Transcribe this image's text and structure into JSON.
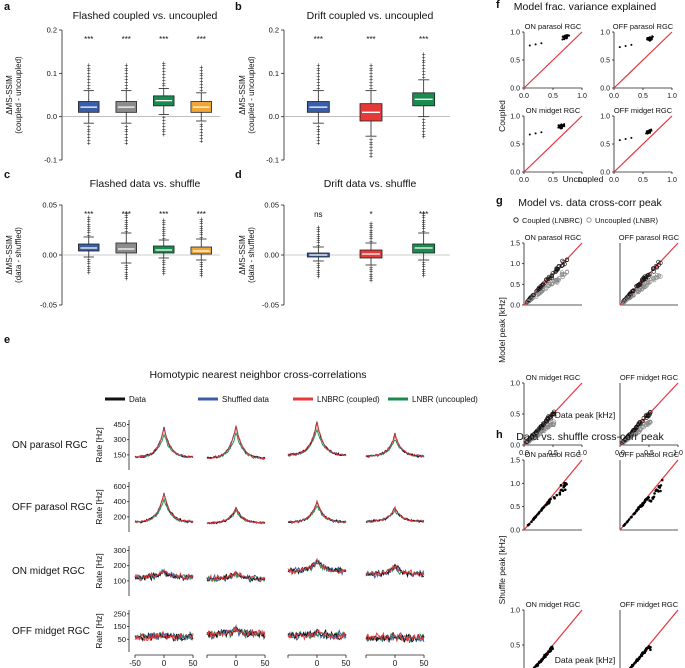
{
  "colors": {
    "blue": "#3a5da8",
    "gray": "#8c8c8c",
    "green": "#1a8a4f",
    "orange": "#f0a535",
    "red": "#e43a3a",
    "black": "#111111",
    "identity": "#e8333a"
  },
  "panel_letters": [
    "a",
    "b",
    "c",
    "d",
    "e",
    "f",
    "g",
    "h"
  ],
  "chart_data": [
    {
      "panel": "a",
      "type": "box",
      "title": "Flashed coupled vs. uncoupled",
      "ylabel_1": "ΔMS-SSIM",
      "ylabel_2": "(coupled - uncoupled)",
      "ylim": [
        -0.1,
        0.2
      ],
      "yticks": [
        "-0.1",
        "0.0",
        "0.1",
        "0.2"
      ],
      "boxes": [
        {
          "color": "blue",
          "q1": 0.01,
          "median": 0.022,
          "q3": 0.035,
          "lo": -0.015,
          "hi": 0.06,
          "sig": "***"
        },
        {
          "color": "gray",
          "q1": 0.01,
          "median": 0.022,
          "q3": 0.035,
          "lo": -0.015,
          "hi": 0.06,
          "sig": "***"
        },
        {
          "color": "green",
          "q1": 0.025,
          "median": 0.037,
          "q3": 0.048,
          "lo": 0.005,
          "hi": 0.065,
          "sig": "***"
        },
        {
          "color": "orange",
          "q1": 0.01,
          "median": 0.022,
          "q3": 0.035,
          "lo": -0.01,
          "hi": 0.055,
          "sig": "***"
        }
      ]
    },
    {
      "panel": "b",
      "type": "box",
      "title": "Drift coupled vs. uncoupled",
      "ylabel_1": "ΔMS-SSIM",
      "ylabel_2": "(coupled - uncoupled)",
      "ylim": [
        -0.1,
        0.2
      ],
      "yticks": [
        "-0.1",
        "0.0",
        "0.1",
        "0.2"
      ],
      "boxes": [
        {
          "color": "blue",
          "q1": 0.01,
          "median": 0.022,
          "q3": 0.035,
          "lo": -0.015,
          "hi": 0.06,
          "sig": "***"
        },
        {
          "color": "red",
          "q1": -0.01,
          "median": 0.01,
          "q3": 0.03,
          "lo": -0.045,
          "hi": 0.06,
          "sig": "***"
        },
        {
          "color": "green",
          "q1": 0.025,
          "median": 0.04,
          "q3": 0.055,
          "lo": 0.0,
          "hi": 0.085,
          "sig": "***"
        }
      ]
    },
    {
      "panel": "c",
      "type": "box",
      "title": "Flashed data vs. shuffle",
      "ylabel_1": "ΔMS-SSIM",
      "ylabel_2": "(data - shuffled)",
      "ylim": [
        -0.05,
        0.05
      ],
      "yticks": [
        "-0.05",
        "0.00",
        "0.05"
      ],
      "boxes": [
        {
          "color": "blue",
          "q1": 0.004,
          "median": 0.007,
          "q3": 0.011,
          "lo": -0.002,
          "hi": 0.018,
          "sig": "***"
        },
        {
          "color": "gray",
          "q1": 0.002,
          "median": 0.006,
          "q3": 0.012,
          "lo": -0.008,
          "hi": 0.022,
          "sig": "***"
        },
        {
          "color": "green",
          "q1": 0.002,
          "median": 0.005,
          "q3": 0.009,
          "lo": -0.003,
          "hi": 0.015,
          "sig": "***"
        },
        {
          "color": "orange",
          "q1": 0.001,
          "median": 0.004,
          "q3": 0.008,
          "lo": -0.005,
          "hi": 0.016,
          "sig": "***"
        }
      ]
    },
    {
      "panel": "d",
      "type": "box",
      "title": "Drift data vs. shuffle",
      "ylabel_1": "ΔMS-SSIM",
      "ylabel_2": "(data - shuffled)",
      "ylim": [
        -0.05,
        0.05
      ],
      "yticks": [
        "-0.05",
        "0.00",
        "0.05"
      ],
      "boxes": [
        {
          "color": "blue",
          "q1": -0.002,
          "median": 0.0,
          "q3": 0.002,
          "lo": -0.006,
          "hi": 0.008,
          "sig": "ns"
        },
        {
          "color": "red",
          "q1": -0.003,
          "median": 0.001,
          "q3": 0.005,
          "lo": -0.01,
          "hi": 0.012,
          "sig": "*"
        },
        {
          "color": "green",
          "q1": 0.002,
          "median": 0.007,
          "q3": 0.011,
          "lo": -0.005,
          "hi": 0.022,
          "sig": "***"
        }
      ]
    },
    {
      "panel": "e",
      "type": "line",
      "title": "Homotypic nearest neighbor cross-correlations",
      "legend": [
        {
          "label": "Data",
          "color": "black"
        },
        {
          "label": "Shuffled data",
          "color": "blue"
        },
        {
          "label": "LNBRC (coupled)",
          "color": "red"
        },
        {
          "label": "LNBR (uncoupled)",
          "color": "green"
        }
      ],
      "xlabel": "Time [ms]",
      "ylabel": "Rate [Hz]",
      "xticks": [
        "-50",
        "0",
        "50"
      ],
      "rows": [
        {
          "name": "ON parasol RGC",
          "yticks": [
            "150",
            "300",
            "450"
          ],
          "ymax": 480,
          "peaks": [
            400,
            420,
            460,
            340
          ],
          "base": [
            120,
            110,
            140,
            130
          ]
        },
        {
          "name": "OFF parasol RGC",
          "yticks": [
            "200",
            "400",
            "600"
          ],
          "ymax": 620,
          "peaks": [
            480,
            300,
            380,
            300
          ],
          "base": [
            120,
            110,
            120,
            130
          ]
        },
        {
          "name": "ON midget RGC",
          "yticks": [
            "100",
            "200",
            "300"
          ],
          "ymax": 320,
          "peaks": [
            160,
            150,
            230,
            190
          ],
          "base": [
            120,
            110,
            160,
            140
          ]
        },
        {
          "name": "OFF midget RGC",
          "yticks": [
            "50",
            "150",
            "250"
          ],
          "ymax": 280,
          "peaks": [
            110,
            150,
            130,
            100
          ],
          "base": [
            100,
            120,
            110,
            95
          ]
        }
      ]
    },
    {
      "panel": "f",
      "type": "scatter",
      "title": "Model frac. variance explained",
      "xlabel": "Uncoupled",
      "ylabel": "Coupled",
      "xlim": [
        0,
        1
      ],
      "ylim": [
        0,
        1
      ],
      "xticks": [
        "0.0",
        "0.5",
        "1.0"
      ],
      "yticks": [
        "0.0",
        "0.5",
        "1.0"
      ],
      "subplots": [
        {
          "name": "ON parasol RGC",
          "cx": 0.72,
          "cy": 0.91
        },
        {
          "name": "OFF parasol RGC",
          "cx": 0.62,
          "cy": 0.88
        },
        {
          "name": "ON midget RGC",
          "cx": 0.65,
          "cy": 0.82
        },
        {
          "name": "OFF midget RGC",
          "cx": 0.6,
          "cy": 0.72
        }
      ]
    },
    {
      "panel": "g",
      "type": "scatter",
      "title": "Model vs. data cross-corr peak",
      "xlabel": "Data peak [kHz]",
      "ylabel": "Model peak [kHz]",
      "legend": [
        {
          "label": "Coupled (LNBRC)",
          "style": "black-open"
        },
        {
          "label": "Uncoupled (LNBR)",
          "style": "gray-open"
        }
      ],
      "subplots": [
        {
          "name": "ON parasol RGC",
          "xlim": [
            0,
            1.5
          ],
          "xticks": [
            "0.0",
            "0.5",
            "1.0",
            "1.5"
          ],
          "yticks": [
            "0.0",
            "0.5",
            "1.0",
            "1.5"
          ]
        },
        {
          "name": "OFF parasol RGC",
          "xlim": [
            0,
            1
          ],
          "xticks": [
            "0.0",
            "0.5",
            "1.0"
          ],
          "yticks": []
        },
        {
          "name": "ON midget RGC",
          "xlim": [
            0,
            1
          ],
          "xticks": [
            "0.0",
            "0.5",
            "1.0"
          ],
          "yticks": [
            "0.0",
            "0.5",
            "1.0"
          ]
        },
        {
          "name": "OFF midget RGC",
          "xlim": [
            0,
            1
          ],
          "xticks": [
            "0.0",
            "0.5",
            "1.0"
          ],
          "yticks": []
        }
      ]
    },
    {
      "panel": "h",
      "type": "scatter",
      "title": "Data vs. shuffle cross-corr peak",
      "xlabel": "Data peak [kHz]",
      "ylabel": "Shuffle peak [kHz]",
      "subplots": [
        {
          "name": "ON parasol RGC",
          "xlim": [
            0,
            1.5
          ],
          "xticks": [
            "0.0",
            "0.5",
            "1.0",
            "1.5"
          ],
          "yticks": [
            "0.0",
            "0.5",
            "1.0",
            "1.5"
          ]
        },
        {
          "name": "OFF parasol RGC",
          "xlim": [
            0,
            1
          ],
          "xticks": [
            "0.0",
            "0.5",
            "1.0"
          ],
          "yticks": []
        },
        {
          "name": "ON midget RGC",
          "xlim": [
            0,
            1
          ],
          "xticks": [
            "0.0",
            "0.5",
            "1.0"
          ],
          "yticks": [
            "0.0",
            "0.5",
            "1.0"
          ]
        },
        {
          "name": "OFF midget RGC",
          "xlim": [
            0,
            1
          ],
          "xticks": [
            "0.0",
            "0.5",
            "1.0"
          ],
          "yticks": []
        }
      ]
    }
  ]
}
